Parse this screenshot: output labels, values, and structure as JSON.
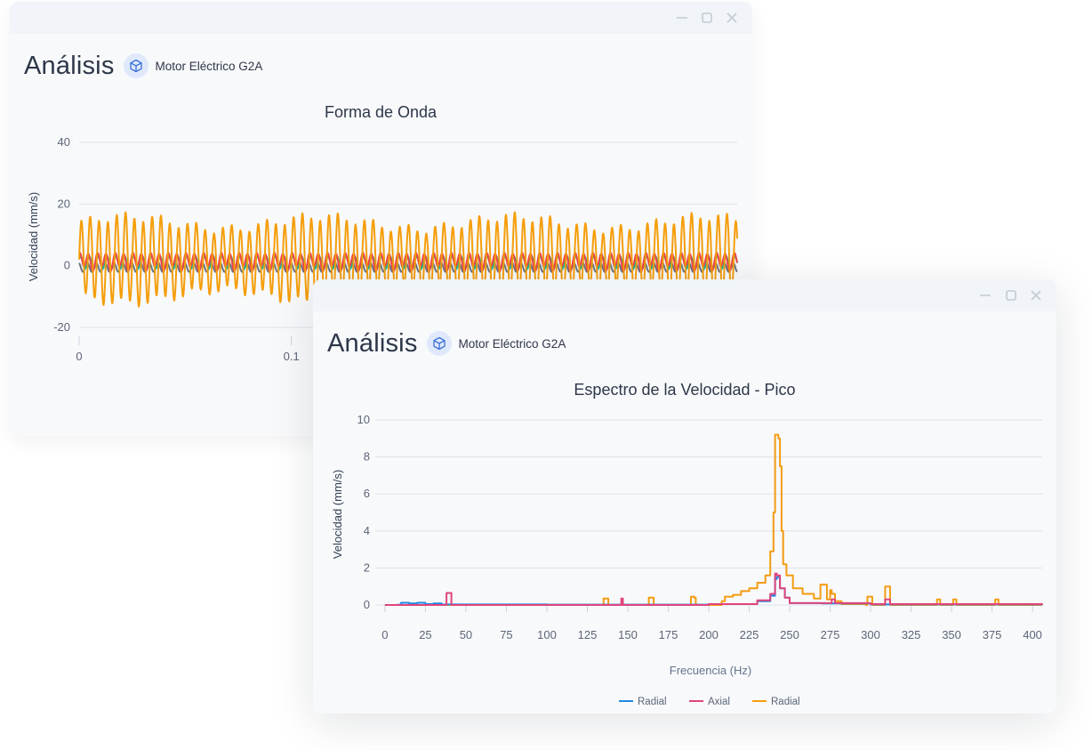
{
  "window1": {
    "heading": "Análisis",
    "asset_icon": "cube-icon",
    "asset_name": "Motor Eléctrico G2A",
    "chart_data": {
      "type": "line",
      "title": "Forma de Onda",
      "ylabel": "Velocidad (mm/s)",
      "xlabel": "",
      "ylim": [
        -20,
        40
      ],
      "yticks": [
        40,
        20,
        0,
        -20
      ],
      "xticks": [
        0,
        0.1
      ],
      "xlim": [
        0,
        0.31
      ],
      "grid": true,
      "series": [
        {
          "color": "#f59e0b",
          "description_amplitude": 14,
          "dominant_freq_hz": 240,
          "approx_offset": 2
        },
        {
          "color": "#ef4444",
          "amplitude": 2.5
        },
        {
          "color": "#14b8a6",
          "amplitude": 2
        },
        {
          "color": "#6b7280",
          "amplitude": 1.5
        }
      ]
    }
  },
  "window2": {
    "heading": "Análisis",
    "asset_icon": "cube-icon",
    "asset_name": "Motor Eléctrico G2A",
    "chart_data": {
      "type": "line",
      "title": "Espectro de la Velocidad - Pico",
      "xlabel": "Frecuencia (Hz)",
      "ylabel": "Velocidad (mm/s)",
      "xlim": [
        -6,
        406
      ],
      "ylim": [
        0,
        10
      ],
      "xticks": [
        0,
        25,
        50,
        75,
        100,
        125,
        150,
        175,
        200,
        225,
        250,
        275,
        300,
        325,
        350,
        375,
        400
      ],
      "yticks": [
        0,
        2,
        4,
        6,
        8,
        10
      ],
      "grid": true,
      "legend_position": "bottom-center",
      "series": [
        {
          "name": "Radial",
          "color": "#1e88e5",
          "x": [
            0,
            8,
            10,
            15,
            20,
            25,
            30,
            35,
            100,
            200,
            230,
            238,
            241,
            242,
            244,
            247,
            250,
            270,
            300,
            406
          ],
          "y": [
            0,
            0.02,
            0.12,
            0.08,
            0.12,
            0.05,
            0.08,
            0.03,
            0.02,
            0.05,
            0.2,
            0.5,
            1.4,
            1.5,
            0.9,
            0.4,
            0.1,
            0.08,
            0.03,
            0.02
          ]
        },
        {
          "name": "Axial",
          "color": "#e0457b",
          "x": [
            0,
            37,
            38,
            40,
            41,
            100,
            145,
            146,
            147,
            200,
            230,
            238,
            241,
            242,
            244,
            247,
            250,
            275,
            276,
            278,
            300,
            308,
            309,
            311,
            312,
            406
          ],
          "y": [
            0,
            0,
            0.65,
            0.65,
            0,
            0,
            0,
            0.35,
            0,
            0.05,
            0.25,
            0.6,
            1.7,
            1.6,
            0.9,
            0.4,
            0.1,
            0.1,
            0.3,
            0.1,
            0.05,
            0.05,
            0.3,
            0.3,
            0.05,
            0
          ]
        },
        {
          "name": "Radial",
          "color": "#f39c12",
          "x": [
            0,
            134,
            135,
            137,
            138,
            162,
            163,
            165,
            166,
            188,
            189,
            191,
            192,
            208,
            210,
            215,
            220,
            225,
            230,
            235,
            238,
            240,
            241,
            242,
            243,
            244,
            245,
            246,
            248,
            252,
            258,
            265,
            268,
            269,
            272,
            273,
            275,
            276,
            278,
            282,
            297,
            298,
            300,
            301,
            308,
            309,
            311,
            312,
            340,
            341,
            342,
            343,
            350,
            351,
            352,
            353,
            376,
            377,
            378,
            379,
            406
          ],
          "y": [
            0,
            0,
            0.35,
            0.35,
            0,
            0,
            0.4,
            0.4,
            0,
            0,
            0.45,
            0.4,
            0,
            0.2,
            0.45,
            0.55,
            0.75,
            0.9,
            1.2,
            1.6,
            2.9,
            5,
            9.2,
            9.2,
            9,
            7.5,
            4,
            2.2,
            1.6,
            0.9,
            0.6,
            0.35,
            0.35,
            1.1,
            1.1,
            0.3,
            0.8,
            0.6,
            0.2,
            0.05,
            0,
            0.45,
            0.45,
            0,
            0,
            1,
            1,
            0,
            0,
            0.3,
            0.3,
            0,
            0,
            0.3,
            0.3,
            0,
            0,
            0.3,
            0.3,
            0,
            0
          ]
        }
      ]
    }
  }
}
